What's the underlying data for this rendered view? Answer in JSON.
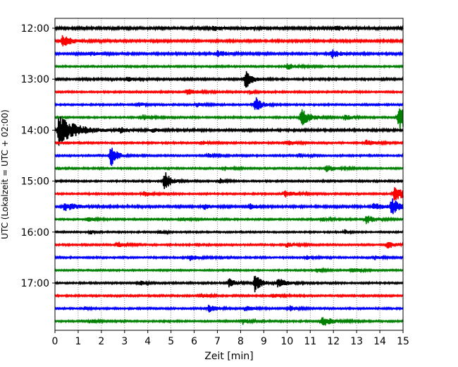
{
  "chart_data": {
    "type": "line",
    "title": "",
    "xlabel": "Zeit  [min]",
    "ylabel": "UTC (Lokalzeit = UTC + 02:00)",
    "xlim": [
      0,
      15
    ],
    "x_ticks": [
      0,
      1,
      2,
      3,
      4,
      5,
      6,
      7,
      8,
      9,
      10,
      11,
      12,
      13,
      14,
      15
    ],
    "y_ticks": [
      "12:00",
      "13:00",
      "14:00",
      "15:00",
      "16:00",
      "17:00"
    ],
    "trace_interval_minutes": 15,
    "grid": "vertical dotted",
    "colors": [
      "#000000",
      "#ff0000",
      "#0000ff",
      "#008000"
    ],
    "traces": [
      {
        "start": "12:00",
        "color": "#000000",
        "noise": 1.5,
        "events": [
          {
            "t": 6.8,
            "amp": 4,
            "w": 0.25
          },
          {
            "t": 8.3,
            "amp": 3,
            "w": 0.2
          },
          {
            "t": 12.1,
            "amp": 4,
            "w": 0.3
          }
        ]
      },
      {
        "start": "12:15",
        "color": "#ff0000",
        "noise": 1.3,
        "events": [
          {
            "t": 0.3,
            "amp": 8,
            "w": 0.45
          }
        ]
      },
      {
        "start": "12:30",
        "color": "#0000ff",
        "noise": 1.3,
        "events": [
          {
            "t": 1.5,
            "amp": 3,
            "w": 0.3
          },
          {
            "t": 7.0,
            "amp": 4,
            "w": 0.4
          },
          {
            "t": 11.9,
            "amp": 7,
            "w": 0.3
          }
        ]
      },
      {
        "start": "12:45",
        "color": "#008000",
        "noise": 1.0,
        "events": [
          {
            "t": 10.0,
            "amp": 4,
            "w": 0.4
          }
        ]
      },
      {
        "start": "13:00",
        "color": "#000000",
        "noise": 1.2,
        "events": [
          {
            "t": 3.1,
            "amp": 4,
            "w": 0.3
          },
          {
            "t": 8.2,
            "amp": 14,
            "w": 0.25
          }
        ]
      },
      {
        "start": "13:15",
        "color": "#ff0000",
        "noise": 1.0,
        "events": [
          {
            "t": 5.7,
            "amp": 4,
            "w": 0.4
          },
          {
            "t": 8.4,
            "amp": 3,
            "w": 0.2
          }
        ]
      },
      {
        "start": "13:30",
        "color": "#0000ff",
        "noise": 1.0,
        "events": [
          {
            "t": 3.6,
            "amp": 3,
            "w": 0.2
          },
          {
            "t": 6.1,
            "amp": 3,
            "w": 0.3
          },
          {
            "t": 8.6,
            "amp": 13,
            "w": 0.25
          }
        ]
      },
      {
        "start": "13:45",
        "color": "#008000",
        "noise": 1.0,
        "events": [
          {
            "t": 3.8,
            "amp": 4,
            "w": 0.3
          },
          {
            "t": 10.6,
            "amp": 13,
            "w": 0.35
          },
          {
            "t": 12.5,
            "amp": 4,
            "w": 0.3
          },
          {
            "t": 14.8,
            "amp": 18,
            "w": 0.55
          }
        ]
      },
      {
        "start": "14:00",
        "color": "#000000",
        "noise": 1.3,
        "events": [
          {
            "t": 0.15,
            "amp": 22,
            "w": 0.7
          },
          {
            "t": 2.8,
            "amp": 4,
            "w": 0.3
          },
          {
            "t": 4.2,
            "amp": 3,
            "w": 0.3
          }
        ]
      },
      {
        "start": "14:15",
        "color": "#ff0000",
        "noise": 1.0,
        "events": [
          {
            "t": 6.3,
            "amp": 3,
            "w": 0.3
          },
          {
            "t": 10.0,
            "amp": 4,
            "w": 0.3
          },
          {
            "t": 13.4,
            "amp": 4,
            "w": 0.3
          }
        ]
      },
      {
        "start": "14:30",
        "color": "#0000ff",
        "noise": 1.0,
        "events": [
          {
            "t": 2.4,
            "amp": 16,
            "w": 0.25
          },
          {
            "t": 6.6,
            "amp": 3,
            "w": 0.3
          },
          {
            "t": 10.5,
            "amp": 3,
            "w": 0.3
          }
        ]
      },
      {
        "start": "14:45",
        "color": "#008000",
        "noise": 1.0,
        "events": [
          {
            "t": 7.3,
            "amp": 3,
            "w": 0.3
          },
          {
            "t": 11.7,
            "amp": 5,
            "w": 0.4
          }
        ]
      },
      {
        "start": "15:00",
        "color": "#000000",
        "noise": 1.0,
        "events": [
          {
            "t": 4.7,
            "amp": 16,
            "w": 0.25
          },
          {
            "t": 7.1,
            "amp": 4,
            "w": 0.2
          }
        ]
      },
      {
        "start": "15:15",
        "color": "#ff0000",
        "noise": 1.0,
        "events": [
          {
            "t": 3.8,
            "amp": 4,
            "w": 0.3
          },
          {
            "t": 9.9,
            "amp": 5,
            "w": 0.4
          },
          {
            "t": 14.6,
            "amp": 10,
            "w": 0.55
          }
        ]
      },
      {
        "start": "15:30",
        "color": "#0000ff",
        "noise": 1.3,
        "events": [
          {
            "t": 0.4,
            "amp": 6,
            "w": 0.5
          },
          {
            "t": 6.4,
            "amp": 4,
            "w": 0.3
          },
          {
            "t": 8.4,
            "amp": 4,
            "w": 0.3
          },
          {
            "t": 13.7,
            "amp": 5,
            "w": 0.4
          },
          {
            "t": 14.5,
            "amp": 14,
            "w": 0.25
          }
        ]
      },
      {
        "start": "15:45",
        "color": "#008000",
        "noise": 1.0,
        "events": [
          {
            "t": 1.4,
            "amp": 3,
            "w": 0.3
          },
          {
            "t": 5.4,
            "amp": 3,
            "w": 0.3
          },
          {
            "t": 11.5,
            "amp": 3,
            "w": 0.3
          },
          {
            "t": 13.4,
            "amp": 6,
            "w": 0.4
          }
        ]
      },
      {
        "start": "16:00",
        "color": "#000000",
        "noise": 0.9,
        "events": [
          {
            "t": 1.5,
            "amp": 4,
            "w": 0.15
          },
          {
            "t": 4.5,
            "amp": 3,
            "w": 0.2
          },
          {
            "t": 12.5,
            "amp": 4,
            "w": 0.15
          }
        ]
      },
      {
        "start": "16:15",
        "color": "#ff0000",
        "noise": 1.0,
        "events": [
          {
            "t": 2.7,
            "amp": 4,
            "w": 0.3
          },
          {
            "t": 10.0,
            "amp": 4,
            "w": 0.3
          },
          {
            "t": 14.3,
            "amp": 5,
            "w": 0.4
          }
        ]
      },
      {
        "start": "16:30",
        "color": "#0000ff",
        "noise": 1.0,
        "events": [
          {
            "t": 5.8,
            "amp": 4,
            "w": 0.4
          },
          {
            "t": 10.8,
            "amp": 3,
            "w": 0.3
          },
          {
            "t": 13.8,
            "amp": 3,
            "w": 0.3
          }
        ]
      },
      {
        "start": "16:45",
        "color": "#008000",
        "noise": 0.9,
        "events": [
          {
            "t": 11.3,
            "amp": 3,
            "w": 0.3
          },
          {
            "t": 12.8,
            "amp": 4,
            "w": 0.3
          }
        ]
      },
      {
        "start": "17:00",
        "color": "#000000",
        "noise": 1.0,
        "events": [
          {
            "t": 3.7,
            "amp": 3,
            "w": 0.2
          },
          {
            "t": 7.5,
            "amp": 8,
            "w": 0.25
          },
          {
            "t": 8.6,
            "amp": 14,
            "w": 0.25
          },
          {
            "t": 9.6,
            "amp": 7,
            "w": 0.35
          }
        ]
      },
      {
        "start": "17:15",
        "color": "#ff0000",
        "noise": 1.0,
        "events": [
          {
            "t": 6.3,
            "amp": 3,
            "w": 0.3
          },
          {
            "t": 9.4,
            "amp": 3,
            "w": 0.3
          }
        ]
      },
      {
        "start": "17:30",
        "color": "#0000ff",
        "noise": 1.0,
        "events": [
          {
            "t": 1.3,
            "amp": 2,
            "w": 0.2
          },
          {
            "t": 6.6,
            "amp": 5,
            "w": 0.35
          },
          {
            "t": 8.2,
            "amp": 4,
            "w": 0.3
          },
          {
            "t": 10.1,
            "amp": 4,
            "w": 0.3
          }
        ]
      },
      {
        "start": "17:45",
        "color": "#008000",
        "noise": 1.0,
        "events": [
          {
            "t": 1.5,
            "amp": 3,
            "w": 0.3
          },
          {
            "t": 8.1,
            "amp": 4,
            "w": 0.3
          },
          {
            "t": 11.5,
            "amp": 7,
            "w": 0.45
          }
        ]
      }
    ]
  }
}
